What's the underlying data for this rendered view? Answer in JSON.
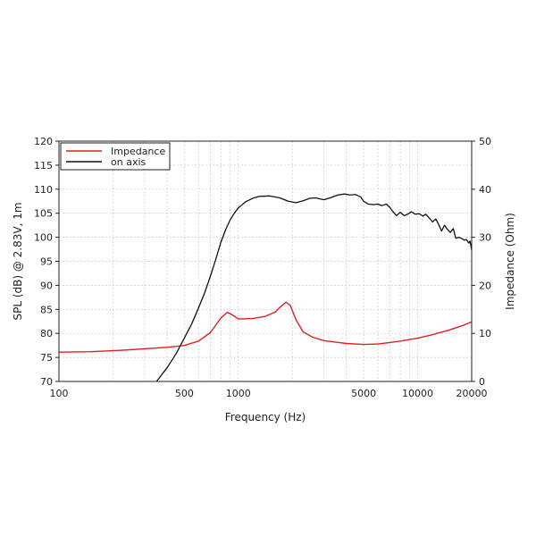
{
  "chart_data": {
    "type": "line",
    "xlabel": "Frequency (Hz)",
    "ylabel": "SPL (dB) @ 2.83V, 1m",
    "y2label": "Impedance (Ohm)",
    "xscale": "log",
    "xlim": [
      100,
      20000
    ],
    "ylim": [
      70,
      120
    ],
    "y2lim": [
      0,
      50
    ],
    "grid": true,
    "legend_position": "top-left",
    "x_tick_labels": [
      {
        "value": 100,
        "label": "100"
      },
      {
        "value": 500,
        "label": "500"
      },
      {
        "value": 1000,
        "label": "1000"
      },
      {
        "value": 5000,
        "label": "5000"
      },
      {
        "value": 10000,
        "label": "10000"
      },
      {
        "value": 20000,
        "label": "20000"
      }
    ],
    "y_ticks": [
      70,
      75,
      80,
      85,
      90,
      95,
      100,
      105,
      110,
      115,
      120
    ],
    "y2_ticks": [
      0,
      10,
      20,
      30,
      40,
      50
    ],
    "series": [
      {
        "name": "Impedance",
        "axis": "right",
        "color": "#e02020",
        "points": [
          [
            100,
            6.1
          ],
          [
            150,
            6.2
          ],
          [
            200,
            6.4
          ],
          [
            250,
            6.6
          ],
          [
            300,
            6.8
          ],
          [
            400,
            7.1
          ],
          [
            500,
            7.5
          ],
          [
            600,
            8.4
          ],
          [
            700,
            10.2
          ],
          [
            800,
            13.2
          ],
          [
            870,
            14.4
          ],
          [
            950,
            13.6
          ],
          [
            1000,
            13.0
          ],
          [
            1200,
            13.1
          ],
          [
            1400,
            13.5
          ],
          [
            1600,
            14.4
          ],
          [
            1750,
            15.8
          ],
          [
            1850,
            16.5
          ],
          [
            1950,
            15.8
          ],
          [
            2100,
            12.8
          ],
          [
            2300,
            10.3
          ],
          [
            2600,
            9.2
          ],
          [
            3000,
            8.5
          ],
          [
            4000,
            7.9
          ],
          [
            5000,
            7.7
          ],
          [
            6000,
            7.8
          ],
          [
            7000,
            8.1
          ],
          [
            8000,
            8.4
          ],
          [
            10000,
            9.0
          ],
          [
            12000,
            9.7
          ],
          [
            15000,
            10.7
          ],
          [
            18000,
            11.7
          ],
          [
            20000,
            12.4
          ]
        ]
      },
      {
        "name": "on axis",
        "axis": "left",
        "color": "#111111",
        "points": [
          [
            350,
            70.0
          ],
          [
            400,
            72.8
          ],
          [
            450,
            75.8
          ],
          [
            500,
            79.0
          ],
          [
            550,
            82.0
          ],
          [
            600,
            85.3
          ],
          [
            650,
            88.5
          ],
          [
            700,
            92.0
          ],
          [
            750,
            95.5
          ],
          [
            800,
            99.0
          ],
          [
            850,
            101.6
          ],
          [
            900,
            103.6
          ],
          [
            950,
            105.0
          ],
          [
            1000,
            106.1
          ],
          [
            1100,
            107.4
          ],
          [
            1200,
            108.1
          ],
          [
            1300,
            108.5
          ],
          [
            1500,
            108.6
          ],
          [
            1700,
            108.2
          ],
          [
            1900,
            107.5
          ],
          [
            2100,
            107.2
          ],
          [
            2300,
            107.6
          ],
          [
            2500,
            108.1
          ],
          [
            2700,
            108.2
          ],
          [
            3000,
            107.8
          ],
          [
            3300,
            108.3
          ],
          [
            3600,
            108.8
          ],
          [
            3900,
            109.0
          ],
          [
            4200,
            108.8
          ],
          [
            4500,
            108.9
          ],
          [
            4800,
            108.4
          ],
          [
            5000,
            107.5
          ],
          [
            5300,
            106.9
          ],
          [
            5700,
            106.8
          ],
          [
            6000,
            106.9
          ],
          [
            6300,
            106.6
          ],
          [
            6700,
            106.9
          ],
          [
            7000,
            106.2
          ],
          [
            7300,
            105.3
          ],
          [
            7600,
            104.5
          ],
          [
            8000,
            105.2
          ],
          [
            8400,
            104.5
          ],
          [
            8800,
            104.8
          ],
          [
            9200,
            105.3
          ],
          [
            9700,
            104.8
          ],
          [
            10200,
            104.9
          ],
          [
            10700,
            104.4
          ],
          [
            11100,
            104.8
          ],
          [
            11600,
            104.0
          ],
          [
            12100,
            103.2
          ],
          [
            12600,
            103.8
          ],
          [
            13000,
            102.9
          ],
          [
            13600,
            101.3
          ],
          [
            14100,
            102.5
          ],
          [
            14600,
            101.7
          ],
          [
            15200,
            101.0
          ],
          [
            15800,
            101.8
          ],
          [
            16300,
            99.8
          ],
          [
            16900,
            100.0
          ],
          [
            17500,
            99.8
          ],
          [
            18200,
            99.4
          ],
          [
            18700,
            99.5
          ],
          [
            19300,
            98.8
          ],
          [
            19600,
            99.2
          ],
          [
            20000,
            97.3
          ]
        ]
      }
    ]
  }
}
